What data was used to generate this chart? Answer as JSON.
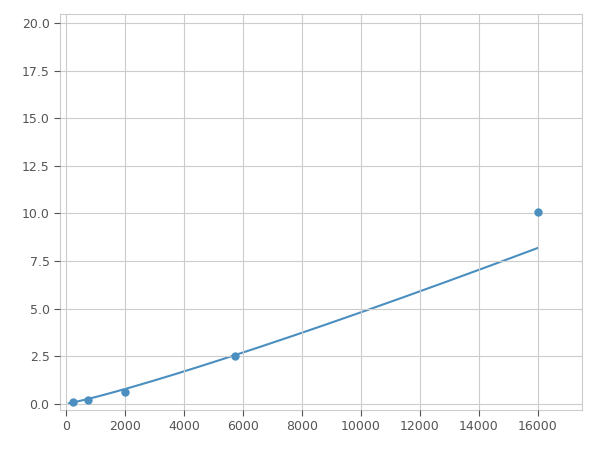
{
  "x_data": [
    250,
    750,
    2000,
    5750,
    16000
  ],
  "y_data": [
    0.1,
    0.2,
    0.6,
    2.5,
    10.1
  ],
  "line_color": "#4a8fc0",
  "marker_color": "#4a8fc0",
  "marker_size": 5,
  "xlim": [
    -200,
    17500
  ],
  "ylim": [
    -0.3,
    20.5
  ],
  "xticks": [
    0,
    2000,
    4000,
    6000,
    8000,
    10000,
    12000,
    14000,
    16000
  ],
  "yticks": [
    0.0,
    2.5,
    5.0,
    7.5,
    10.0,
    12.5,
    15.0,
    17.5,
    20.0
  ],
  "grid_color": "#cccccc",
  "spine_color": "#cccccc",
  "bg_color": "#ffffff",
  "tick_fontsize": 9,
  "tick_color": "#555555"
}
